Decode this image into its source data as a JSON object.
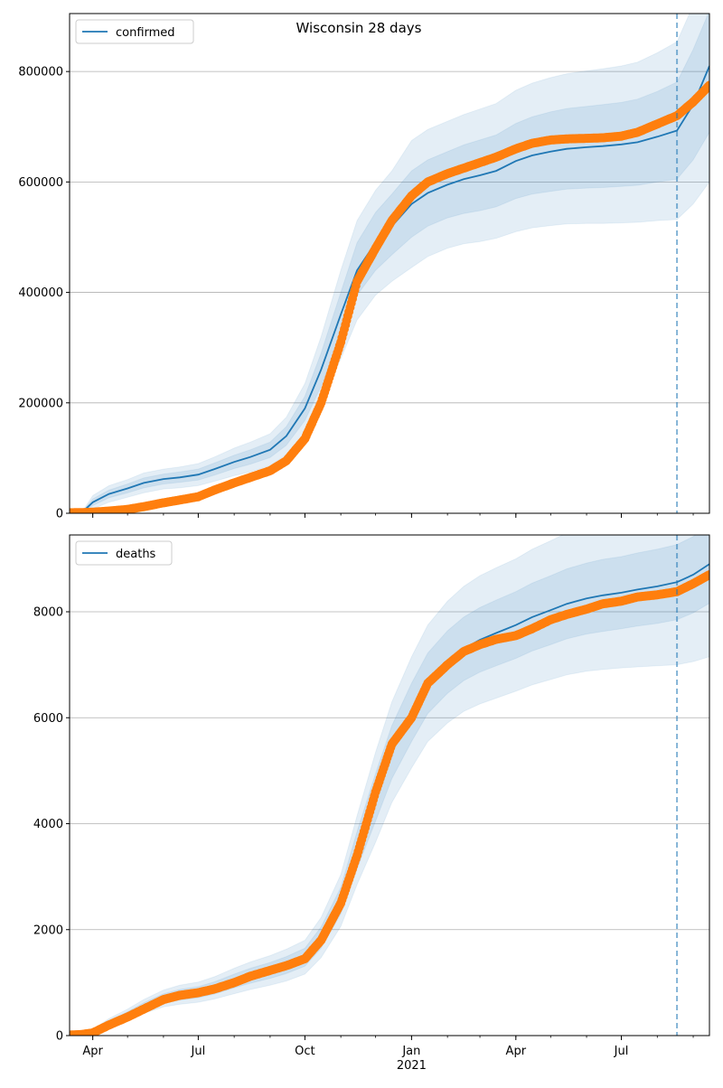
{
  "title": "Wisconsin 28 days",
  "chart_data": [
    {
      "type": "line",
      "panel": "confirmed",
      "legend": {
        "label": "confirmed",
        "placement": "upper-left"
      },
      "x_ticks": [
        {
          "date": "2020-04-01",
          "label": "Apr",
          "sublabel": ""
        },
        {
          "date": "2020-07-01",
          "label": "Jul",
          "sublabel": ""
        },
        {
          "date": "2020-10-01",
          "label": "Oct",
          "sublabel": ""
        },
        {
          "date": "2021-01-01",
          "label": "Jan",
          "sublabel": "2021"
        },
        {
          "date": "2021-04-01",
          "label": "Apr",
          "sublabel": ""
        },
        {
          "date": "2021-07-01",
          "label": "Jul",
          "sublabel": ""
        }
      ],
      "x_range": [
        "2020-03-12",
        "2021-09-15"
      ],
      "forecast_start": "2021-08-18",
      "ylim": [
        0,
        905000
      ],
      "y_ticks": [
        0,
        200000,
        400000,
        600000,
        800000
      ],
      "y_tick_labels": [
        "0",
        "200000",
        "400000",
        "600000",
        "800000"
      ],
      "grid": "horizontal",
      "colors": {
        "model": "#1f77b4",
        "observed": "#ff7f0e"
      },
      "model": {
        "name": "confirmed",
        "dates": [
          "2020-03-12",
          "2020-03-22",
          "2020-04-01",
          "2020-04-15",
          "2020-05-01",
          "2020-05-15",
          "2020-06-01",
          "2020-06-15",
          "2020-07-01",
          "2020-07-15",
          "2020-08-01",
          "2020-08-15",
          "2020-09-01",
          "2020-09-15",
          "2020-10-01",
          "2020-10-15",
          "2020-11-01",
          "2020-11-15",
          "2020-12-01",
          "2020-12-15",
          "2021-01-01",
          "2021-01-15",
          "2021-02-01",
          "2021-02-15",
          "2021-03-01",
          "2021-03-15",
          "2021-04-01",
          "2021-04-15",
          "2021-05-01",
          "2021-05-15",
          "2021-06-01",
          "2021-06-15",
          "2021-07-01",
          "2021-07-15",
          "2021-08-01",
          "2021-08-18",
          "2021-09-01",
          "2021-09-15"
        ],
        "center": [
          0,
          0,
          20000,
          35000,
          45000,
          55000,
          62000,
          65000,
          70000,
          80000,
          93000,
          102000,
          115000,
          140000,
          190000,
          260000,
          360000,
          440000,
          490000,
          520000,
          560000,
          580000,
          595000,
          605000,
          612000,
          620000,
          638000,
          648000,
          655000,
          660000,
          663000,
          665000,
          668000,
          672000,
          682000,
          693000,
          740000,
          810000
        ],
        "band_inner": [
          [
            0,
            0
          ],
          [
            0,
            0
          ],
          [
            14000,
            26000
          ],
          [
            28000,
            42000
          ],
          [
            37000,
            53000
          ],
          [
            46000,
            64000
          ],
          [
            53000,
            71000
          ],
          [
            56000,
            75000
          ],
          [
            60000,
            80000
          ],
          [
            69000,
            91000
          ],
          [
            81000,
            105000
          ],
          [
            89000,
            115000
          ],
          [
            101000,
            129000
          ],
          [
            123000,
            157000
          ],
          [
            168000,
            212000
          ],
          [
            230000,
            290000
          ],
          [
            320000,
            400000
          ],
          [
            395000,
            490000
          ],
          [
            440000,
            545000
          ],
          [
            468000,
            578000
          ],
          [
            500000,
            620000
          ],
          [
            520000,
            640000
          ],
          [
            535000,
            655000
          ],
          [
            543000,
            667000
          ],
          [
            548000,
            676000
          ],
          [
            555000,
            685000
          ],
          [
            570000,
            706000
          ],
          [
            578000,
            718000
          ],
          [
            583000,
            727000
          ],
          [
            587000,
            733000
          ],
          [
            589000,
            737000
          ],
          [
            590000,
            740000
          ],
          [
            592000,
            744000
          ],
          [
            594000,
            750000
          ],
          [
            600000,
            764000
          ],
          [
            605000,
            781000
          ],
          [
            640000,
            840000
          ],
          [
            690000,
            910000
          ]
        ],
        "band_outer": [
          [
            0,
            0
          ],
          [
            0,
            0
          ],
          [
            8000,
            32000
          ],
          [
            20000,
            50000
          ],
          [
            29000,
            61000
          ],
          [
            37000,
            73000
          ],
          [
            44000,
            80000
          ],
          [
            46000,
            84000
          ],
          [
            50000,
            90000
          ],
          [
            58000,
            102000
          ],
          [
            68000,
            118000
          ],
          [
            75000,
            129000
          ],
          [
            86000,
            144000
          ],
          [
            106000,
            174000
          ],
          [
            145000,
            235000
          ],
          [
            200000,
            320000
          ],
          [
            280000,
            440000
          ],
          [
            350000,
            530000
          ],
          [
            395000,
            585000
          ],
          [
            420000,
            620000
          ],
          [
            445000,
            675000
          ],
          [
            465000,
            695000
          ],
          [
            480000,
            710000
          ],
          [
            488000,
            722000
          ],
          [
            492000,
            732000
          ],
          [
            498000,
            742000
          ],
          [
            510000,
            766000
          ],
          [
            517000,
            779000
          ],
          [
            521000,
            789000
          ],
          [
            524000,
            796000
          ],
          [
            525000,
            801000
          ],
          [
            525000,
            805000
          ],
          [
            526000,
            810000
          ],
          [
            527000,
            817000
          ],
          [
            530000,
            834000
          ],
          [
            532000,
            854000
          ],
          [
            560000,
            920000
          ],
          [
            600000,
            1020000
          ]
        ]
      },
      "observed": {
        "name": "",
        "dates": [
          "2020-03-12",
          "2020-03-22",
          "2020-04-01",
          "2020-04-15",
          "2020-05-01",
          "2020-05-15",
          "2020-06-01",
          "2020-06-15",
          "2020-07-01",
          "2020-07-15",
          "2020-08-01",
          "2020-08-15",
          "2020-09-01",
          "2020-09-15",
          "2020-10-01",
          "2020-10-15",
          "2020-11-01",
          "2020-11-15",
          "2020-12-01",
          "2020-12-15",
          "2021-01-01",
          "2021-01-15",
          "2021-02-01",
          "2021-02-15",
          "2021-03-01",
          "2021-03-15",
          "2021-04-01",
          "2021-04-15",
          "2021-05-01",
          "2021-05-15",
          "2021-06-01",
          "2021-06-15",
          "2021-07-01",
          "2021-07-15",
          "2021-08-01",
          "2021-08-18",
          "2021-09-01",
          "2021-09-15"
        ],
        "values": [
          1000,
          1200,
          2000,
          4000,
          7000,
          12000,
          19000,
          24000,
          30000,
          42000,
          55000,
          65000,
          77000,
          95000,
          135000,
          200000,
          310000,
          420000,
          480000,
          530000,
          575000,
          600000,
          615000,
          625000,
          635000,
          645000,
          660000,
          670000,
          676000,
          678000,
          679000,
          680000,
          683000,
          690000,
          705000,
          720000,
          745000,
          775000
        ]
      }
    },
    {
      "type": "line",
      "panel": "deaths",
      "legend": {
        "label": "deaths",
        "placement": "upper-left"
      },
      "x_ticks": [
        {
          "date": "2020-04-01",
          "label": "Apr",
          "sublabel": ""
        },
        {
          "date": "2020-07-01",
          "label": "Jul",
          "sublabel": ""
        },
        {
          "date": "2020-10-01",
          "label": "Oct",
          "sublabel": ""
        },
        {
          "date": "2021-01-01",
          "label": "Jan",
          "sublabel": "2021"
        },
        {
          "date": "2021-04-01",
          "label": "Apr",
          "sublabel": ""
        },
        {
          "date": "2021-07-01",
          "label": "Jul",
          "sublabel": ""
        }
      ],
      "x_range": [
        "2020-03-12",
        "2021-09-15"
      ],
      "forecast_start": "2021-08-18",
      "ylim": [
        0,
        9450
      ],
      "y_ticks": [
        0,
        2000,
        4000,
        6000,
        8000
      ],
      "y_tick_labels": [
        "0",
        "2000",
        "4000",
        "6000",
        "8000"
      ],
      "grid": "horizontal",
      "colors": {
        "model": "#1f77b4",
        "observed": "#ff7f0e"
      },
      "model": {
        "name": "deaths",
        "dates": [
          "2020-03-12",
          "2020-03-22",
          "2020-04-01",
          "2020-04-15",
          "2020-05-01",
          "2020-05-15",
          "2020-06-01",
          "2020-06-15",
          "2020-07-01",
          "2020-07-15",
          "2020-08-01",
          "2020-08-15",
          "2020-09-01",
          "2020-09-15",
          "2020-10-01",
          "2020-10-15",
          "2020-11-01",
          "2020-11-15",
          "2020-12-01",
          "2020-12-15",
          "2021-01-01",
          "2021-01-15",
          "2021-02-01",
          "2021-02-15",
          "2021-03-01",
          "2021-03-15",
          "2021-04-01",
          "2021-04-15",
          "2021-05-01",
          "2021-05-15",
          "2021-06-01",
          "2021-06-15",
          "2021-07-01",
          "2021-07-15",
          "2021-08-01",
          "2021-08-18",
          "2021-09-01",
          "2021-09-15"
        ],
        "center": [
          0,
          0,
          80,
          250,
          400,
          550,
          700,
          770,
          820,
          900,
          1030,
          1130,
          1230,
          1330,
          1480,
          1850,
          2550,
          3500,
          4500,
          5350,
          6100,
          6650,
          7050,
          7300,
          7470,
          7600,
          7750,
          7900,
          8030,
          8150,
          8250,
          8310,
          8360,
          8420,
          8480,
          8560,
          8700,
          8900
        ],
        "band_inner": [
          [
            0,
            0
          ],
          [
            0,
            0
          ],
          [
            60,
            100
          ],
          [
            215,
            285
          ],
          [
            350,
            450
          ],
          [
            480,
            620
          ],
          [
            610,
            790
          ],
          [
            670,
            870
          ],
          [
            715,
            925
          ],
          [
            785,
            1015
          ],
          [
            900,
            1160
          ],
          [
            990,
            1270
          ],
          [
            1080,
            1380
          ],
          [
            1170,
            1490
          ],
          [
            1310,
            1650
          ],
          [
            1650,
            2050
          ],
          [
            2300,
            2800
          ],
          [
            3150,
            3850
          ],
          [
            4050,
            4950
          ],
          [
            4850,
            5850
          ],
          [
            5550,
            6650
          ],
          [
            6080,
            7220
          ],
          [
            6460,
            7640
          ],
          [
            6700,
            7900
          ],
          [
            6860,
            8080
          ],
          [
            6980,
            8220
          ],
          [
            7120,
            8380
          ],
          [
            7260,
            8540
          ],
          [
            7380,
            8680
          ],
          [
            7490,
            8810
          ],
          [
            7580,
            8920
          ],
          [
            7630,
            8990
          ],
          [
            7680,
            9040
          ],
          [
            7730,
            9110
          ],
          [
            7780,
            9180
          ],
          [
            7850,
            9270
          ],
          [
            7980,
            9420
          ],
          [
            8160,
            9640
          ]
        ],
        "band_outer": [
          [
            0,
            0
          ],
          [
            0,
            0
          ],
          [
            40,
            120
          ],
          [
            180,
            320
          ],
          [
            300,
            500
          ],
          [
            420,
            680
          ],
          [
            540,
            860
          ],
          [
            590,
            950
          ],
          [
            630,
            1010
          ],
          [
            690,
            1110
          ],
          [
            790,
            1270
          ],
          [
            870,
            1390
          ],
          [
            950,
            1510
          ],
          [
            1030,
            1630
          ],
          [
            1160,
            1800
          ],
          [
            1470,
            2230
          ],
          [
            2060,
            3040
          ],
          [
            2850,
            4150
          ],
          [
            3650,
            5350
          ],
          [
            4400,
            6300
          ],
          [
            5050,
            7150
          ],
          [
            5550,
            7750
          ],
          [
            5900,
            8200
          ],
          [
            6120,
            8480
          ],
          [
            6260,
            8680
          ],
          [
            6370,
            8830
          ],
          [
            6500,
            9000
          ],
          [
            6620,
            9180
          ],
          [
            6720,
            9340
          ],
          [
            6810,
            9490
          ],
          [
            6880,
            9620
          ],
          [
            6910,
            9710
          ],
          [
            6940,
            9780
          ],
          [
            6960,
            9880
          ],
          [
            6980,
            9980
          ],
          [
            7000,
            10120
          ],
          [
            7060,
            10340
          ],
          [
            7150,
            10650
          ]
        ]
      },
      "observed": {
        "name": "",
        "dates": [
          "2020-03-12",
          "2020-03-22",
          "2020-04-01",
          "2020-04-15",
          "2020-05-01",
          "2020-05-15",
          "2020-06-01",
          "2020-06-15",
          "2020-07-01",
          "2020-07-15",
          "2020-08-01",
          "2020-08-15",
          "2020-09-01",
          "2020-09-15",
          "2020-10-01",
          "2020-10-15",
          "2020-11-01",
          "2020-11-15",
          "2020-12-01",
          "2020-12-15",
          "2021-01-01",
          "2021-01-15",
          "2021-02-01",
          "2021-02-15",
          "2021-03-01",
          "2021-03-15",
          "2021-04-01",
          "2021-04-15",
          "2021-05-01",
          "2021-05-15",
          "2021-06-01",
          "2021-06-15",
          "2021-07-01",
          "2021-07-15",
          "2021-08-01",
          "2021-08-18",
          "2021-09-01",
          "2021-09-15"
        ],
        "values": [
          10,
          20,
          50,
          200,
          350,
          500,
          680,
          760,
          810,
          880,
          1000,
          1120,
          1230,
          1320,
          1450,
          1800,
          2500,
          3400,
          4600,
          5500,
          6000,
          6650,
          7000,
          7250,
          7380,
          7480,
          7550,
          7680,
          7850,
          7950,
          8050,
          8150,
          8200,
          8280,
          8320,
          8380,
          8530,
          8700
        ]
      }
    }
  ]
}
